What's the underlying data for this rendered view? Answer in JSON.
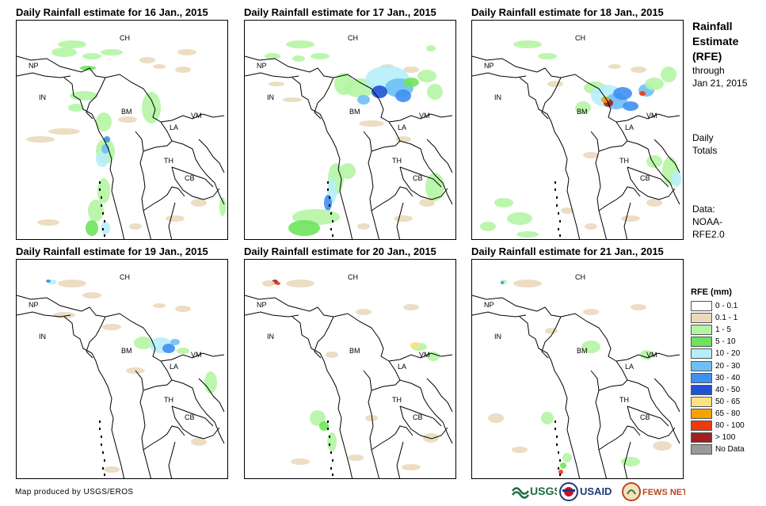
{
  "panels": [
    {
      "title": "Daily Rainfall estimate for 16 Jan., 2015",
      "rain": "d16"
    },
    {
      "title": "Daily Rainfall estimate for 17 Jan., 2015",
      "rain": "d17"
    },
    {
      "title": "Daily Rainfall estimate for 18 Jan., 2015",
      "rain": "d18"
    },
    {
      "title": "Daily Rainfall estimate for 19 Jan., 2015",
      "rain": "d19"
    },
    {
      "title": "Daily Rainfall estimate for 20 Jan., 2015",
      "rain": "d20"
    },
    {
      "title": "Daily Rainfall estimate for 21 Jan., 2015",
      "rain": "d21"
    }
  ],
  "country_labels": {
    "ch": "CH",
    "np": "NP",
    "in": "IN",
    "bm": "BM",
    "vm": "VM",
    "la": "LA",
    "th": "TH",
    "cb": "CB"
  },
  "sidebar": {
    "title_line1": "Rainfall",
    "title_line2": "Estimate",
    "title_line3": "(RFE)",
    "through": "through",
    "through_date": "Jan 21, 2015",
    "daily": "Daily",
    "totals": "Totals",
    "data": "Data:",
    "data_src1": "NOAA-",
    "data_src2": "RFE2.0"
  },
  "legend": {
    "title": "RFE (mm)",
    "items": [
      {
        "label": "0 - 0.1",
        "color": "#ffffff"
      },
      {
        "label": "0.1 - 1",
        "color": "#ead9bd"
      },
      {
        "label": "1 - 5",
        "color": "#b4f5a3"
      },
      {
        "label": "5 - 10",
        "color": "#6ee35d"
      },
      {
        "label": "10 - 20",
        "color": "#b6eef9"
      },
      {
        "label": "20 - 30",
        "color": "#6fbff5"
      },
      {
        "label": "30 - 40",
        "color": "#3f8ff0"
      },
      {
        "label": "40 - 50",
        "color": "#1f52d6"
      },
      {
        "label": "50 - 65",
        "color": "#fae186"
      },
      {
        "label": "65 - 80",
        "color": "#f7a100"
      },
      {
        "label": "80 - 100",
        "color": "#ee3a0e"
      },
      {
        "label": "> 100",
        "color": "#a31f1f"
      },
      {
        "label": "No Data",
        "color": "#9a9a9a"
      }
    ]
  },
  "footer": "Map produced by USGS/EROS",
  "logos": {
    "usgs": "USGS",
    "usaid": "USAID",
    "fewsnet": "FEWS NET"
  }
}
